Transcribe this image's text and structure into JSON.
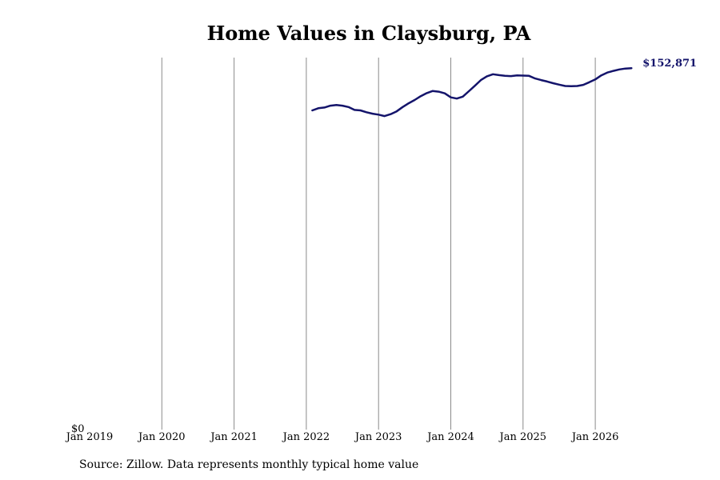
{
  "chart_data": {
    "type": "line",
    "title": "Home Values in Claysburg, PA",
    "xlabel": "",
    "ylabel": "",
    "source": "Source: Zillow. Data represents monthly typical home value",
    "y_tick_label": "$0",
    "x_ticks": [
      "Jan 2019",
      "Jan 2020",
      "Jan 2021",
      "Jan 2022",
      "Jan 2023",
      "Jan 2024",
      "Jan 2025",
      "Jan 2026"
    ],
    "end_label": "$152,871",
    "xlim": [
      "2019-01",
      "2026-07"
    ],
    "ylim": [
      0,
      158000
    ],
    "grid": "vertical",
    "line_color": "#14146b",
    "series": [
      {
        "x": [
          "2022-02",
          "2022-03",
          "2022-04",
          "2022-05",
          "2022-06",
          "2022-07",
          "2022-08",
          "2022-09",
          "2022-10",
          "2022-11",
          "2022-12",
          "2023-01",
          "2023-02",
          "2023-03",
          "2023-04",
          "2023-05",
          "2023-06",
          "2023-07",
          "2023-08",
          "2023-09",
          "2023-10",
          "2023-11",
          "2023-12",
          "2024-01",
          "2024-02",
          "2024-03",
          "2024-04",
          "2024-05",
          "2024-06",
          "2024-07",
          "2024-08",
          "2024-09",
          "2024-10",
          "2024-11",
          "2024-12",
          "2025-01",
          "2025-02",
          "2025-03",
          "2025-04",
          "2025-05",
          "2025-06",
          "2025-07",
          "2025-08",
          "2025-09",
          "2025-10",
          "2025-11",
          "2025-12",
          "2026-01",
          "2026-02",
          "2026-03",
          "2026-04",
          "2026-05",
          "2026-06",
          "2026-07"
        ],
        "values": [
          135000,
          135900,
          136200,
          137000,
          137300,
          137000,
          136400,
          135200,
          135000,
          134200,
          133600,
          133200,
          132600,
          133400,
          134600,
          136400,
          138000,
          139400,
          141000,
          142300,
          143200,
          142900,
          142200,
          140500,
          140000,
          140800,
          143100,
          145400,
          147800,
          149400,
          150300,
          149900,
          149600,
          149500,
          149800,
          149700,
          149600,
          148500,
          147800,
          147200,
          146500,
          145900,
          145300,
          145200,
          145300,
          145800,
          146900,
          148100,
          149800,
          151000,
          151700,
          152300,
          152700,
          152871
        ]
      }
    ]
  }
}
